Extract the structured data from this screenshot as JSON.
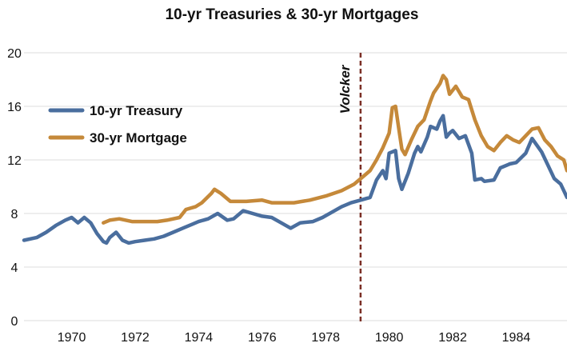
{
  "chart_data": {
    "type": "line",
    "title": "10-yr Treasuries & 30-yr Mortgages",
    "xlabel": "",
    "ylabel": "",
    "xlim": [
      1968.5,
      1985.6
    ],
    "ylim": [
      0,
      20
    ],
    "x_ticks": [
      "1970",
      "1972",
      "1974",
      "1976",
      "1978",
      "1980",
      "1982",
      "1984"
    ],
    "y_ticks": [
      "0",
      "4",
      "8",
      "12",
      "16",
      "20"
    ],
    "grid": "horizontal",
    "legend_position": "left",
    "annotation": {
      "text": "Volcker",
      "x": 1979.1
    },
    "series": [
      {
        "name": "10-yr Treasury",
        "color": "#4a6e9e",
        "points": [
          [
            1968.5,
            6.0
          ],
          [
            1968.9,
            6.2
          ],
          [
            1969.2,
            6.6
          ],
          [
            1969.5,
            7.1
          ],
          [
            1969.8,
            7.5
          ],
          [
            1970.0,
            7.7
          ],
          [
            1970.2,
            7.3
          ],
          [
            1970.4,
            7.7
          ],
          [
            1970.6,
            7.3
          ],
          [
            1970.8,
            6.5
          ],
          [
            1971.0,
            5.9
          ],
          [
            1971.1,
            5.8
          ],
          [
            1971.2,
            6.2
          ],
          [
            1971.4,
            6.6
          ],
          [
            1971.6,
            6.0
          ],
          [
            1971.8,
            5.8
          ],
          [
            1972.0,
            5.9
          ],
          [
            1972.3,
            6.0
          ],
          [
            1972.6,
            6.1
          ],
          [
            1972.9,
            6.3
          ],
          [
            1973.2,
            6.6
          ],
          [
            1973.5,
            6.9
          ],
          [
            1973.8,
            7.2
          ],
          [
            1974.0,
            7.4
          ],
          [
            1974.3,
            7.6
          ],
          [
            1974.6,
            8.0
          ],
          [
            1974.9,
            7.5
          ],
          [
            1975.1,
            7.6
          ],
          [
            1975.4,
            8.2
          ],
          [
            1975.7,
            8.0
          ],
          [
            1976.0,
            7.8
          ],
          [
            1976.3,
            7.7
          ],
          [
            1976.6,
            7.3
          ],
          [
            1976.9,
            6.9
          ],
          [
            1977.2,
            7.3
          ],
          [
            1977.6,
            7.4
          ],
          [
            1977.9,
            7.7
          ],
          [
            1978.2,
            8.1
          ],
          [
            1978.5,
            8.5
          ],
          [
            1978.8,
            8.8
          ],
          [
            1979.1,
            9.0
          ],
          [
            1979.4,
            9.2
          ],
          [
            1979.6,
            10.5
          ],
          [
            1979.8,
            11.2
          ],
          [
            1979.9,
            10.6
          ],
          [
            1980.0,
            12.5
          ],
          [
            1980.2,
            12.7
          ],
          [
            1980.3,
            10.6
          ],
          [
            1980.4,
            9.8
          ],
          [
            1980.6,
            11.0
          ],
          [
            1980.8,
            12.5
          ],
          [
            1980.9,
            13.0
          ],
          [
            1981.0,
            12.6
          ],
          [
            1981.2,
            13.7
          ],
          [
            1981.3,
            14.5
          ],
          [
            1981.5,
            14.3
          ],
          [
            1981.6,
            14.9
          ],
          [
            1981.7,
            15.3
          ],
          [
            1981.8,
            13.7
          ],
          [
            1981.9,
            14.0
          ],
          [
            1982.0,
            14.2
          ],
          [
            1982.2,
            13.6
          ],
          [
            1982.4,
            13.8
          ],
          [
            1982.6,
            12.5
          ],
          [
            1982.7,
            10.5
          ],
          [
            1982.9,
            10.6
          ],
          [
            1983.0,
            10.4
          ],
          [
            1983.3,
            10.5
          ],
          [
            1983.5,
            11.4
          ],
          [
            1983.8,
            11.7
          ],
          [
            1984.0,
            11.8
          ],
          [
            1984.3,
            12.5
          ],
          [
            1984.5,
            13.6
          ],
          [
            1984.8,
            12.6
          ],
          [
            1985.0,
            11.6
          ],
          [
            1985.2,
            10.6
          ],
          [
            1985.4,
            10.2
          ],
          [
            1985.6,
            9.2
          ]
        ]
      },
      {
        "name": "30-yr Mortgage",
        "color": "#c5893a",
        "points": [
          [
            1971.0,
            7.3
          ],
          [
            1971.2,
            7.5
          ],
          [
            1971.5,
            7.6
          ],
          [
            1971.9,
            7.4
          ],
          [
            1972.3,
            7.4
          ],
          [
            1972.7,
            7.4
          ],
          [
            1973.0,
            7.5
          ],
          [
            1973.4,
            7.7
          ],
          [
            1973.6,
            8.3
          ],
          [
            1973.9,
            8.5
          ],
          [
            1974.1,
            8.8
          ],
          [
            1974.4,
            9.5
          ],
          [
            1974.5,
            9.8
          ],
          [
            1974.7,
            9.5
          ],
          [
            1975.0,
            8.9
          ],
          [
            1975.5,
            8.9
          ],
          [
            1976.0,
            9.0
          ],
          [
            1976.3,
            8.8
          ],
          [
            1976.6,
            8.8
          ],
          [
            1977.0,
            8.8
          ],
          [
            1977.5,
            9.0
          ],
          [
            1978.0,
            9.3
          ],
          [
            1978.5,
            9.7
          ],
          [
            1978.9,
            10.2
          ],
          [
            1979.2,
            10.8
          ],
          [
            1979.4,
            11.2
          ],
          [
            1979.6,
            12.0
          ],
          [
            1979.8,
            12.9
          ],
          [
            1980.0,
            14.0
          ],
          [
            1980.1,
            15.9
          ],
          [
            1980.2,
            16.0
          ],
          [
            1980.3,
            14.4
          ],
          [
            1980.4,
            12.8
          ],
          [
            1980.5,
            12.4
          ],
          [
            1980.7,
            13.5
          ],
          [
            1980.9,
            14.5
          ],
          [
            1981.1,
            15.0
          ],
          [
            1981.3,
            16.4
          ],
          [
            1981.4,
            17.0
          ],
          [
            1981.6,
            17.7
          ],
          [
            1981.7,
            18.3
          ],
          [
            1981.8,
            18.0
          ],
          [
            1981.9,
            16.9
          ],
          [
            1982.1,
            17.5
          ],
          [
            1982.3,
            16.7
          ],
          [
            1982.5,
            16.5
          ],
          [
            1982.7,
            15.0
          ],
          [
            1982.9,
            13.8
          ],
          [
            1983.1,
            13.0
          ],
          [
            1983.3,
            12.7
          ],
          [
            1983.5,
            13.3
          ],
          [
            1983.7,
            13.8
          ],
          [
            1983.9,
            13.5
          ],
          [
            1984.1,
            13.3
          ],
          [
            1984.3,
            13.8
          ],
          [
            1984.5,
            14.3
          ],
          [
            1984.7,
            14.4
          ],
          [
            1984.9,
            13.5
          ],
          [
            1985.1,
            13.0
          ],
          [
            1985.3,
            12.3
          ],
          [
            1985.5,
            12.0
          ],
          [
            1985.6,
            11.2
          ]
        ]
      }
    ]
  }
}
